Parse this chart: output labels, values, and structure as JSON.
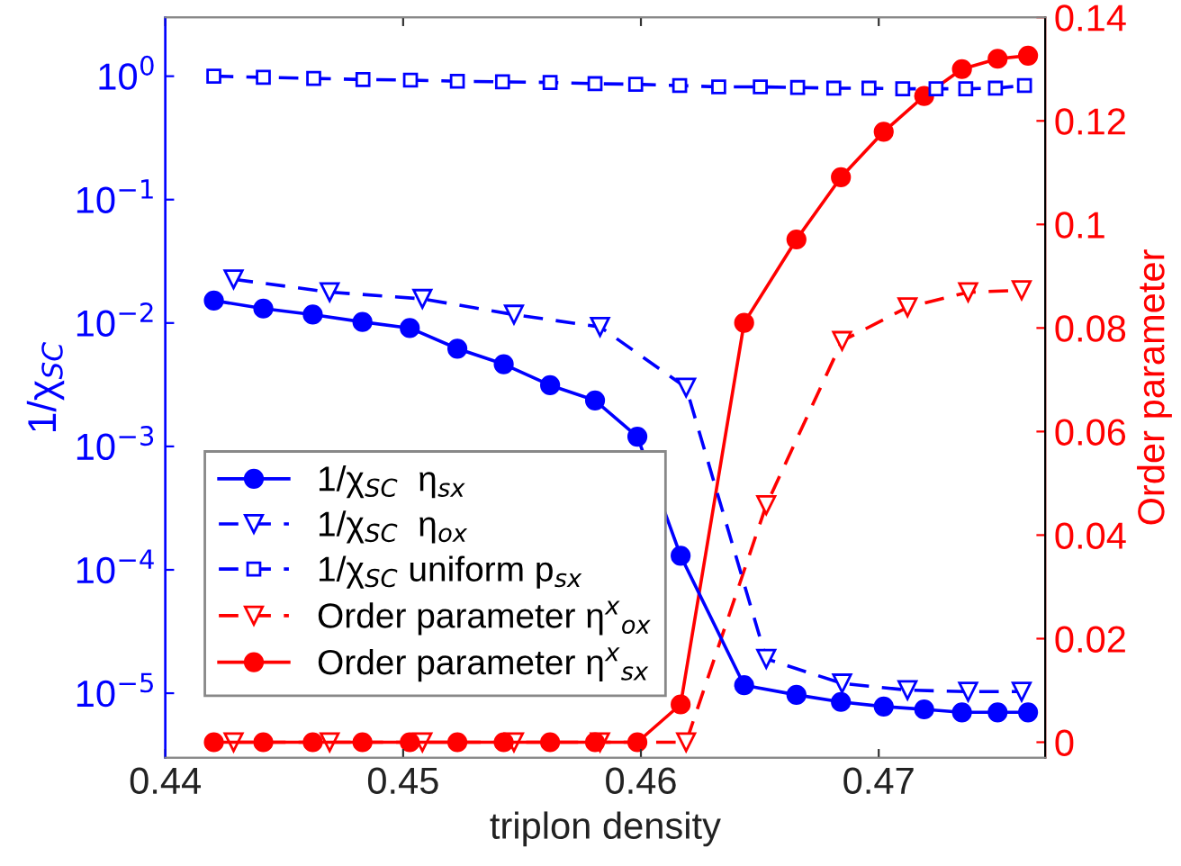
{
  "chart_data": {
    "type": "line",
    "xlabel": "triplon density",
    "ylabel": "1/χ$_{SC}$",
    "y2label": "Order parameter",
    "xlim": [
      0.44,
      0.477
    ],
    "xticks": [
      0.44,
      0.45,
      0.46,
      0.47
    ],
    "ylim": [
      3e-06,
      3.0
    ],
    "yticks": [
      {
        "value": 1e-05,
        "label": "10$^{−5}$"
      },
      {
        "value": 0.0001,
        "label": "10$^{−4}$"
      },
      {
        "value": 0.001,
        "label": "10$^{−3}$"
      },
      {
        "value": 0.01,
        "label": "10$^{−2}$"
      },
      {
        "value": 0.1,
        "label": "10$^{−1}$"
      },
      {
        "value": 1,
        "label": "10$^{0}$"
      }
    ],
    "y2lim": [
      -0.003,
      0.14
    ],
    "y2ticks": [
      0,
      0.02,
      0.04,
      0.06,
      0.08,
      0.1,
      0.12,
      0.14
    ],
    "log": "y",
    "grid": false,
    "legend": "bottom left",
    "series": [
      {
        "name": "1/χ$_{SC}$  η$_{sx}$",
        "color": "#0000ff",
        "marker": "circle",
        "line_style": "solid",
        "x": [
          0.44204,
          0.44412,
          0.4462,
          0.44829,
          0.45028,
          0.45228,
          0.45423,
          0.45618,
          0.45807,
          0.45985,
          0.46167,
          0.46434,
          0.46654,
          0.46841,
          0.47021,
          0.47191,
          0.4735,
          0.475,
          0.47628
        ],
        "values": [
          0.0152,
          0.0131,
          0.0117,
          0.0102,
          0.0091,
          0.0062,
          0.00464,
          0.00313,
          0.00236,
          0.0012,
          0.00013,
          1.16e-05,
          9.7e-06,
          8.5e-06,
          7.8e-06,
          7.4e-06,
          7e-06,
          7e-06,
          7e-06
        ]
      },
      {
        "name": "1/χ$_{SC}$  η$_{ox}$",
        "color": "#0000ff",
        "marker": "triangle",
        "line_style": "dashed",
        "x": [
          0.44287,
          0.44691,
          0.45081,
          0.45466,
          0.45828,
          0.4619,
          0.46527,
          0.46846,
          0.47121,
          0.47376,
          0.47601
        ],
        "values": [
          0.0226,
          0.0178,
          0.0157,
          0.0117,
          0.0093,
          0.003,
          1.9e-05,
          1.2e-05,
          1.06e-05,
          1.03e-05,
          1.03e-05
        ]
      },
      {
        "name": "1/χ$_{SC}$ uniform p$_{sx}$",
        "color": "#0000ff",
        "marker": "square",
        "line_style": "dashed",
        "x": [
          0.44204,
          0.44412,
          0.44624,
          0.44831,
          0.45031,
          0.45228,
          0.45418,
          0.45618,
          0.45807,
          0.45978,
          0.46163,
          0.46327,
          0.46502,
          0.46659,
          0.46811,
          0.46959,
          0.47101,
          0.47241,
          0.47366,
          0.47491,
          0.47613
        ],
        "values": [
          1.0,
          0.98,
          0.96,
          0.94,
          0.93,
          0.91,
          0.9,
          0.89,
          0.87,
          0.86,
          0.84,
          0.82,
          0.82,
          0.81,
          0.8,
          0.8,
          0.79,
          0.79,
          0.79,
          0.8,
          0.84
        ]
      },
      {
        "name": "Order parameter η$^{x}$$_{ox}$",
        "color": "#ff0000",
        "marker": "triangle",
        "line_style": "dashed",
        "axis": "y2",
        "x": [
          0.44287,
          0.44691,
          0.45081,
          0.45466,
          0.45828,
          0.4619,
          0.46527,
          0.46846,
          0.47121,
          0.47376,
          0.47601
        ],
        "values": [
          0,
          0,
          0,
          0,
          0,
          0,
          0.0458,
          0.0775,
          0.084,
          0.0869,
          0.0873
        ]
      },
      {
        "name": "Order parameter η$^{x}$$_{sx}$",
        "color": "#ff0000",
        "marker": "circle",
        "line_style": "solid",
        "axis": "y2",
        "x": [
          0.44204,
          0.44412,
          0.4462,
          0.44829,
          0.45028,
          0.45228,
          0.45423,
          0.45618,
          0.45807,
          0.45985,
          0.46167,
          0.46434,
          0.46654,
          0.46841,
          0.47021,
          0.47191,
          0.4735,
          0.475,
          0.47628
        ],
        "values": [
          0,
          0,
          0,
          0,
          0,
          0,
          0,
          0,
          0,
          0,
          0.0073,
          0.081,
          0.0971,
          0.1091,
          0.1179,
          0.1248,
          0.13,
          0.132,
          0.1326
        ]
      }
    ]
  }
}
